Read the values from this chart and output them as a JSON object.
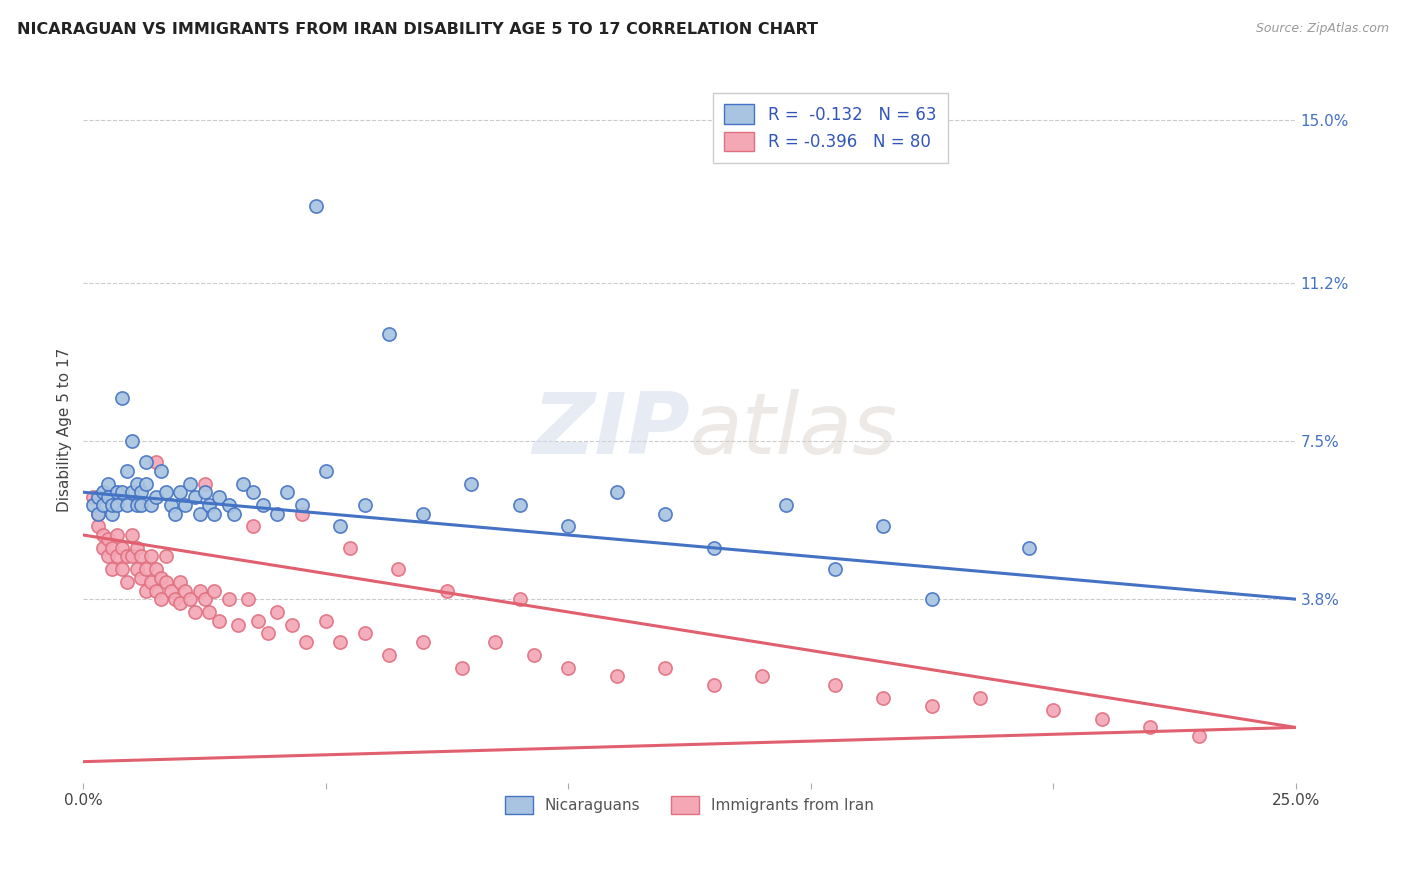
{
  "title": "NICARAGUAN VS IMMIGRANTS FROM IRAN DISABILITY AGE 5 TO 17 CORRELATION CHART",
  "source": "Source: ZipAtlas.com",
  "ylabel": "Disability Age 5 to 17",
  "xlim": [
    0.0,
    0.25
  ],
  "ylim": [
    -0.005,
    0.16
  ],
  "right_ytick_positions": [
    0.15,
    0.112,
    0.075,
    0.038
  ],
  "right_ytick_labels": [
    "15.0%",
    "11.2%",
    "7.5%",
    "3.8%"
  ],
  "legend_r1": "R =  -0.132   N = 63",
  "legend_r2": "R = -0.396   N = 80",
  "color_blue": "#a8c4e0",
  "color_pink": "#f4a7b5",
  "line_color_blue": "#4472c4",
  "line_color_pink": "#e06070",
  "legend_text_color": "#3355bb",
  "watermark_zip": "ZIP",
  "watermark_atlas": "atlas",
  "nicaraguan_x": [
    0.002,
    0.003,
    0.003,
    0.004,
    0.004,
    0.005,
    0.005,
    0.006,
    0.006,
    0.007,
    0.007,
    0.008,
    0.008,
    0.009,
    0.009,
    0.01,
    0.01,
    0.011,
    0.011,
    0.012,
    0.012,
    0.013,
    0.013,
    0.014,
    0.015,
    0.016,
    0.017,
    0.018,
    0.019,
    0.02,
    0.021,
    0.022,
    0.023,
    0.024,
    0.025,
    0.026,
    0.027,
    0.028,
    0.03,
    0.031,
    0.033,
    0.035,
    0.037,
    0.04,
    0.042,
    0.045,
    0.048,
    0.05,
    0.053,
    0.058,
    0.063,
    0.07,
    0.08,
    0.09,
    0.1,
    0.11,
    0.12,
    0.13,
    0.145,
    0.155,
    0.165,
    0.175,
    0.195
  ],
  "nicaraguan_y": [
    0.06,
    0.062,
    0.058,
    0.063,
    0.06,
    0.065,
    0.062,
    0.058,
    0.06,
    0.063,
    0.06,
    0.085,
    0.063,
    0.068,
    0.06,
    0.075,
    0.063,
    0.065,
    0.06,
    0.063,
    0.06,
    0.07,
    0.065,
    0.06,
    0.062,
    0.068,
    0.063,
    0.06,
    0.058,
    0.063,
    0.06,
    0.065,
    0.062,
    0.058,
    0.063,
    0.06,
    0.058,
    0.062,
    0.06,
    0.058,
    0.065,
    0.063,
    0.06,
    0.058,
    0.063,
    0.06,
    0.13,
    0.068,
    0.055,
    0.06,
    0.1,
    0.058,
    0.065,
    0.06,
    0.055,
    0.063,
    0.058,
    0.05,
    0.06,
    0.045,
    0.055,
    0.038,
    0.05
  ],
  "iran_x": [
    0.002,
    0.003,
    0.003,
    0.004,
    0.004,
    0.005,
    0.005,
    0.006,
    0.006,
    0.007,
    0.007,
    0.008,
    0.008,
    0.009,
    0.009,
    0.01,
    0.01,
    0.011,
    0.011,
    0.012,
    0.012,
    0.013,
    0.013,
    0.014,
    0.014,
    0.015,
    0.015,
    0.016,
    0.016,
    0.017,
    0.017,
    0.018,
    0.019,
    0.02,
    0.02,
    0.021,
    0.022,
    0.023,
    0.024,
    0.025,
    0.026,
    0.027,
    0.028,
    0.03,
    0.032,
    0.034,
    0.036,
    0.038,
    0.04,
    0.043,
    0.046,
    0.05,
    0.053,
    0.058,
    0.063,
    0.07,
    0.078,
    0.085,
    0.093,
    0.1,
    0.11,
    0.12,
    0.13,
    0.14,
    0.155,
    0.165,
    0.175,
    0.185,
    0.2,
    0.21,
    0.22,
    0.23,
    0.015,
    0.025,
    0.035,
    0.045,
    0.055,
    0.065,
    0.075,
    0.09
  ],
  "iran_y": [
    0.062,
    0.058,
    0.055,
    0.05,
    0.053,
    0.048,
    0.052,
    0.045,
    0.05,
    0.048,
    0.053,
    0.045,
    0.05,
    0.048,
    0.042,
    0.048,
    0.053,
    0.045,
    0.05,
    0.043,
    0.048,
    0.04,
    0.045,
    0.048,
    0.042,
    0.04,
    0.045,
    0.038,
    0.043,
    0.042,
    0.048,
    0.04,
    0.038,
    0.042,
    0.037,
    0.04,
    0.038,
    0.035,
    0.04,
    0.038,
    0.035,
    0.04,
    0.033,
    0.038,
    0.032,
    0.038,
    0.033,
    0.03,
    0.035,
    0.032,
    0.028,
    0.033,
    0.028,
    0.03,
    0.025,
    0.028,
    0.022,
    0.028,
    0.025,
    0.022,
    0.02,
    0.022,
    0.018,
    0.02,
    0.018,
    0.015,
    0.013,
    0.015,
    0.012,
    0.01,
    0.008,
    0.006,
    0.07,
    0.065,
    0.055,
    0.058,
    0.05,
    0.045,
    0.04,
    0.038
  ],
  "blue_trend_x0": 0.0,
  "blue_trend_x1": 0.25,
  "blue_trend_y0": 0.063,
  "blue_trend_y1": 0.038,
  "pink_trend_x0": 0.0,
  "pink_trend_x1": 0.25,
  "pink_trend_y0": 0.053,
  "pink_trend_y1": 0.008
}
